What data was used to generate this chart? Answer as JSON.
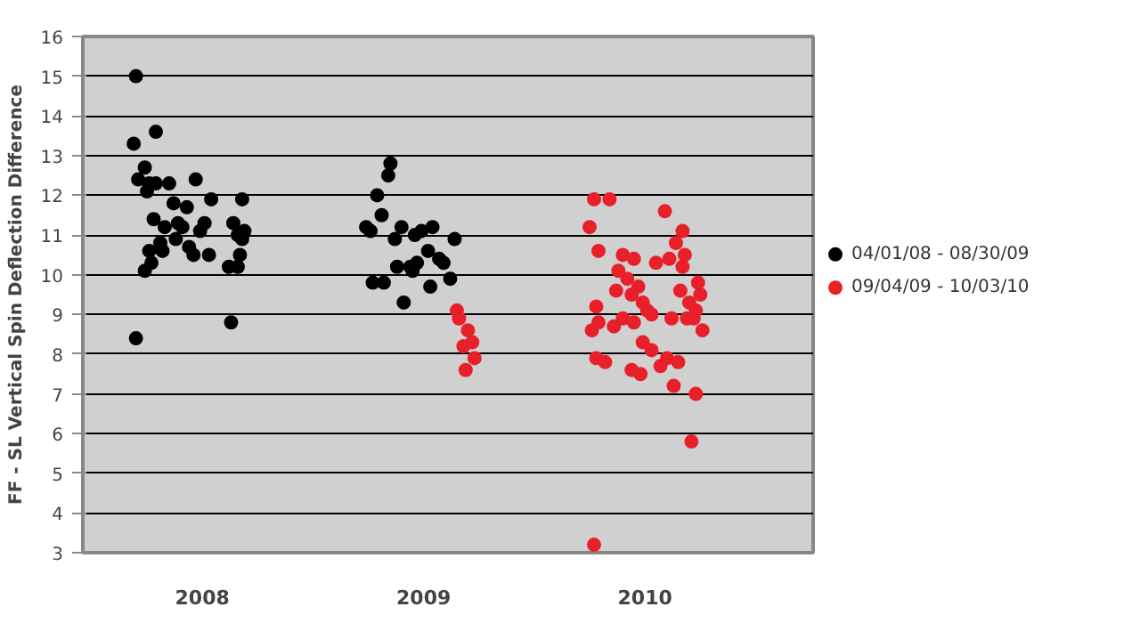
{
  "chart_data": {
    "type": "scatter",
    "ylabel": "FF - SL Vertical Spin Deflection Difference",
    "xlim": [
      2007.46,
      2010.76
    ],
    "xticks": [
      2008,
      2009,
      2010
    ],
    "ylim": [
      3,
      16
    ],
    "yticks": [
      3,
      4,
      5,
      6,
      7,
      8,
      9,
      10,
      11,
      12,
      13,
      14,
      15,
      16
    ],
    "grid": "y",
    "legend": "right",
    "marker": "circle",
    "series": [
      {
        "name": "04/01/08 - 08/30/09",
        "color": "#000000",
        "x": [
          2007.7,
          2007.69,
          2007.79,
          2007.74,
          2007.71,
          2007.76,
          2007.79,
          2007.75,
          2007.85,
          2007.97,
          2007.87,
          2007.93,
          2008.04,
          2008.18,
          2007.78,
          2007.83,
          2007.89,
          2007.91,
          2008.01,
          2007.99,
          2008.14,
          2008.16,
          2008.19,
          2008.18,
          2007.81,
          2007.88,
          2007.94,
          2007.76,
          2007.82,
          2007.96,
          2008.03,
          2008.17,
          2007.77,
          2007.74,
          2008.12,
          2008.16,
          2008.13,
          2007.7,
          2008.74,
          2008.76,
          2008.77,
          2008.85,
          2008.84,
          2008.79,
          2008.81,
          2008.9,
          2008.87,
          2008.96,
          2008.99,
          2009.04,
          2009.14,
          2009.02,
          2009.07,
          2009.09,
          2008.88,
          2008.94,
          2008.97,
          2008.95,
          2009.12,
          2008.82,
          2009.03,
          2008.91
        ],
        "values": [
          15.0,
          13.3,
          13.6,
          12.7,
          12.4,
          12.3,
          12.3,
          12.1,
          12.3,
          12.4,
          11.8,
          11.7,
          11.9,
          11.9,
          11.4,
          11.2,
          11.3,
          11.2,
          11.3,
          11.1,
          11.3,
          11.0,
          11.1,
          10.9,
          10.8,
          10.9,
          10.7,
          10.6,
          10.6,
          10.5,
          10.5,
          10.5,
          10.3,
          10.1,
          10.2,
          10.2,
          8.8,
          8.4,
          11.2,
          11.1,
          9.8,
          12.8,
          12.5,
          12.0,
          11.5,
          11.2,
          10.9,
          11.0,
          11.1,
          11.2,
          10.9,
          10.6,
          10.4,
          10.3,
          10.2,
          10.2,
          10.3,
          10.1,
          9.9,
          9.8,
          9.7,
          9.3
        ]
      },
      {
        "name": "09/04/09 - 10/03/10",
        "color": "#e8202a",
        "x": [
          2009.15,
          2009.16,
          2009.2,
          2009.22,
          2009.18,
          2009.23,
          2009.19,
          2009.77,
          2009.84,
          2009.75,
          2009.79,
          2009.9,
          2009.95,
          2010.05,
          2009.88,
          2009.92,
          2009.97,
          2009.87,
          2009.94,
          2009.99,
          2009.78,
          2010.01,
          2010.03,
          2009.9,
          2009.79,
          2009.86,
          2009.76,
          2009.95,
          2009.99,
          2010.03,
          2009.78,
          2009.82,
          2009.94,
          2009.98,
          2010.07,
          2009.77,
          2010.09,
          2010.17,
          2010.14,
          2010.18,
          2010.11,
          2010.17,
          2010.24,
          2010.16,
          2010.25,
          2010.2,
          2010.23,
          2010.12,
          2010.19,
          2010.22,
          2010.26,
          2010.1,
          2010.15,
          2010.13,
          2010.23,
          2010.21
        ],
        "values": [
          9.1,
          8.9,
          8.6,
          8.3,
          8.2,
          7.9,
          7.6,
          11.9,
          11.9,
          11.2,
          10.6,
          10.5,
          10.4,
          10.3,
          10.1,
          9.9,
          9.7,
          9.6,
          9.5,
          9.3,
          9.2,
          9.1,
          9.0,
          8.9,
          8.8,
          8.7,
          8.6,
          8.8,
          8.3,
          8.1,
          7.9,
          7.8,
          7.6,
          7.5,
          7.7,
          3.2,
          11.6,
          11.1,
          10.8,
          10.5,
          10.4,
          10.2,
          9.8,
          9.6,
          9.5,
          9.3,
          9.1,
          8.9,
          8.9,
          8.9,
          8.6,
          7.9,
          7.8,
          7.2,
          7.0,
          5.8
        ]
      }
    ]
  }
}
